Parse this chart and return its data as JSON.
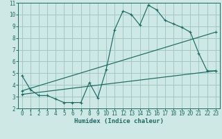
{
  "xlabel": "Humidex (Indice chaleur)",
  "bg_color": "#cde8e5",
  "grid_color": "#a0c8c4",
  "line_color": "#1a6b62",
  "spine_color": "#1a6b62",
  "bottom_bar_color": "#3a8a80",
  "xlim": [
    -0.5,
    23.5
  ],
  "ylim": [
    2,
    11
  ],
  "xticks": [
    0,
    1,
    2,
    3,
    4,
    5,
    6,
    7,
    8,
    9,
    10,
    11,
    12,
    13,
    14,
    15,
    16,
    17,
    18,
    19,
    20,
    21,
    22,
    23
  ],
  "yticks": [
    2,
    3,
    4,
    5,
    6,
    7,
    8,
    9,
    10,
    11
  ],
  "line1_x": [
    0,
    1,
    2,
    3,
    4,
    5,
    6,
    7,
    8,
    9,
    10,
    11,
    12,
    13,
    14,
    15,
    16,
    17,
    18,
    19,
    20,
    21,
    22,
    23
  ],
  "line1_y": [
    4.8,
    3.6,
    3.1,
    3.1,
    2.8,
    2.5,
    2.5,
    2.5,
    4.2,
    2.9,
    5.3,
    8.7,
    10.3,
    10.0,
    9.1,
    10.8,
    10.4,
    9.5,
    9.2,
    8.9,
    8.5,
    6.7,
    5.2,
    5.2
  ],
  "line2_x": [
    0,
    23
  ],
  "line2_y": [
    3.5,
    8.5
  ],
  "line3_x": [
    0,
    23
  ],
  "line3_y": [
    3.2,
    5.2
  ],
  "tick_fontsize": 5.5,
  "xlabel_fontsize": 6.5
}
